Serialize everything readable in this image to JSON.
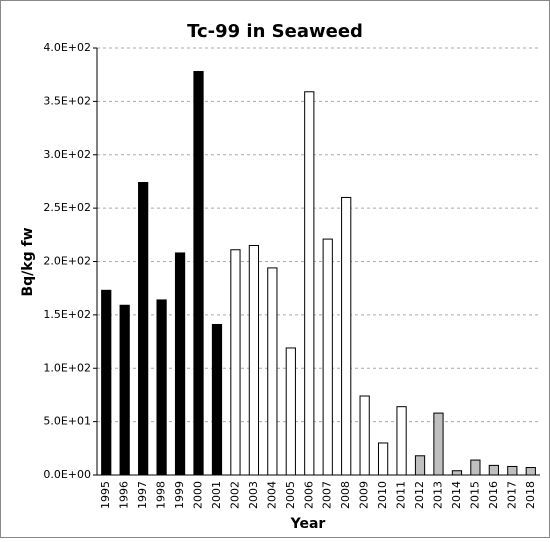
{
  "chart_data": {
    "type": "bar",
    "title": "Tc-99 in Seaweed",
    "x_label": "Year",
    "y_label": "Bq/kg fw",
    "categories": [
      "1995",
      "1996",
      "1997",
      "1998",
      "1999",
      "2000",
      "2001",
      "2002",
      "2003",
      "2004",
      "2005",
      "2006",
      "2007",
      "2008",
      "2009",
      "2010",
      "2011",
      "2012",
      "2013",
      "2014",
      "2015",
      "2016",
      "2017",
      "2018"
    ],
    "values": [
      173,
      159,
      274,
      164,
      208,
      378,
      141,
      211,
      215,
      194,
      119,
      359,
      221,
      260,
      74,
      30,
      64,
      18,
      58,
      4,
      14,
      9,
      8,
      7
    ],
    "colors": [
      "#000000",
      "#000000",
      "#000000",
      "#000000",
      "#000000",
      "#000000",
      "#000000",
      "#ffffff",
      "#ffffff",
      "#ffffff",
      "#ffffff",
      "#ffffff",
      "#ffffff",
      "#ffffff",
      "#ffffff",
      "#ffffff",
      "#ffffff",
      "#bfbfbf",
      "#bfbfbf",
      "#bfbfbf",
      "#bfbfbf",
      "#bfbfbf",
      "#bfbfbf",
      "#bfbfbf"
    ],
    "ylim": [
      0,
      400
    ],
    "yticks": [
      {
        "value": 0,
        "label": "0.0E+00"
      },
      {
        "value": 50,
        "label": "5.0E+01"
      },
      {
        "value": 100,
        "label": "1.0E+02"
      },
      {
        "value": 150,
        "label": "1.5E+02"
      },
      {
        "value": 200,
        "label": "2.0E+02"
      },
      {
        "value": 250,
        "label": "2.5E+02"
      },
      {
        "value": 300,
        "label": "3.0E+02"
      },
      {
        "value": 350,
        "label": "3.5E+02"
      },
      {
        "value": 400,
        "label": "4.0E+02"
      }
    ],
    "grid": true
  }
}
